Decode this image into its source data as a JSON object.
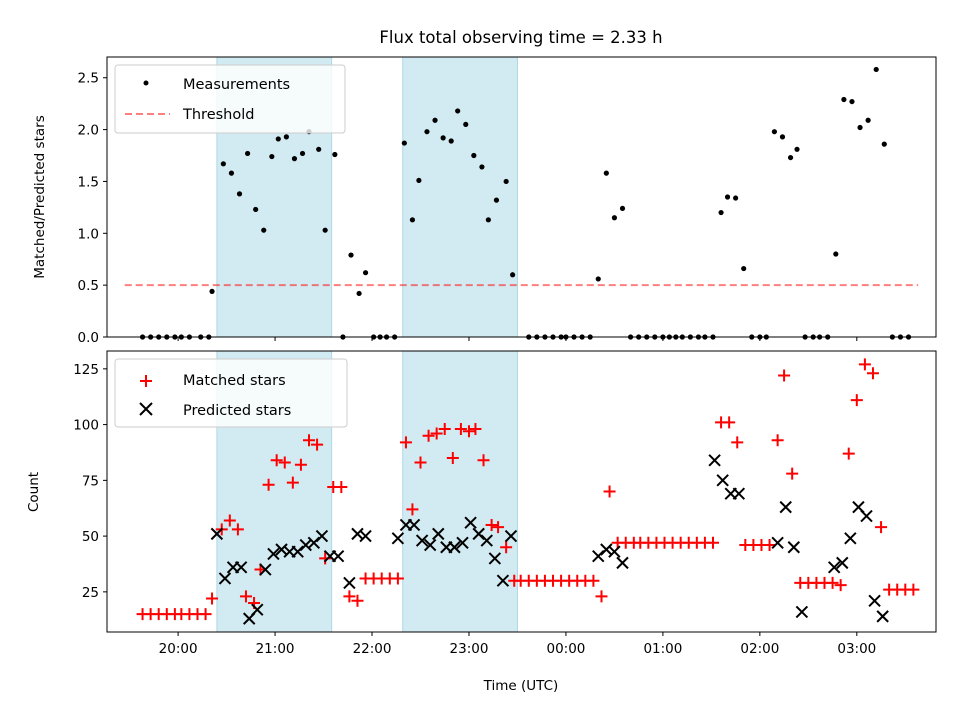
{
  "title": "Flux total observing time = 2.33 h",
  "colors": {
    "shade": "#add8e6",
    "measurement": "#000000",
    "threshold": "#ff0000",
    "matched": "#ff0000",
    "predicted": "#000000"
  },
  "chart_data": [
    {
      "type": "scatter",
      "panel": "top",
      "ylabel": "Matched/Predicted stars",
      "ylim": [
        0,
        2.7
      ],
      "xlim": [
        "19:16",
        "03:49"
      ],
      "yticks": [
        "0.0",
        "0.5",
        "1.0",
        "1.5",
        "2.0",
        "2.5"
      ],
      "grid": false,
      "legend_position": "upper-left",
      "legend": [
        "Measurements",
        "Threshold"
      ],
      "threshold": {
        "name": "Threshold",
        "y": 0.5,
        "x_start": "19:27",
        "x_end": "03:38"
      },
      "shaded_intervals": [
        [
          "20:24",
          "21:35"
        ],
        [
          "22:19",
          "23:30"
        ]
      ],
      "series": [
        {
          "name": "Measurements",
          "style": "dot",
          "points": [
            [
              "19:38",
              0
            ],
            [
              "19:43",
              0
            ],
            [
              "19:48",
              0
            ],
            [
              "19:53",
              0
            ],
            [
              "19:58",
              0
            ],
            [
              "20:02",
              0
            ],
            [
              "20:07",
              0
            ],
            [
              "20:14",
              0
            ],
            [
              "20:19",
              0
            ],
            [
              "20:21",
              0.44
            ],
            [
              "20:28",
              1.67
            ],
            [
              "20:33",
              1.58
            ],
            [
              "20:38",
              1.38
            ],
            [
              "20:43",
              1.77
            ],
            [
              "20:48",
              1.23
            ],
            [
              "20:53",
              1.03
            ],
            [
              "20:58",
              1.74
            ],
            [
              "21:02",
              1.91
            ],
            [
              "21:07",
              1.93
            ],
            [
              "21:12",
              1.72
            ],
            [
              "21:17",
              1.77
            ],
            [
              "21:21",
              1.98
            ],
            [
              "21:27",
              1.81
            ],
            [
              "21:31",
              1.03
            ],
            [
              "21:37",
              1.76
            ],
            [
              "21:42",
              0
            ],
            [
              "21:47",
              0.79
            ],
            [
              "21:52",
              0.42
            ],
            [
              "21:56",
              0.62
            ],
            [
              "22:01",
              0
            ],
            [
              "22:05",
              0
            ],
            [
              "22:09",
              0
            ],
            [
              "22:14",
              0
            ],
            [
              "22:20",
              1.87
            ],
            [
              "22:25",
              1.13
            ],
            [
              "22:29",
              1.51
            ],
            [
              "22:34",
              1.98
            ],
            [
              "22:39",
              2.09
            ],
            [
              "22:44",
              1.92
            ],
            [
              "22:49",
              1.89
            ],
            [
              "22:53",
              2.18
            ],
            [
              "22:58",
              2.05
            ],
            [
              "23:03",
              1.75
            ],
            [
              "23:08",
              1.64
            ],
            [
              "23:12",
              1.13
            ],
            [
              "23:17",
              1.32
            ],
            [
              "23:23",
              1.5
            ],
            [
              "23:27",
              0.6
            ],
            [
              "23:37",
              0
            ],
            [
              "23:42",
              0
            ],
            [
              "23:47",
              0
            ],
            [
              "23:52",
              0
            ],
            [
              "23:57",
              0
            ],
            [
              "00:00",
              0
            ],
            [
              "00:05",
              0
            ],
            [
              "00:10",
              0
            ],
            [
              "00:15",
              0
            ],
            [
              "00:20",
              0.56
            ],
            [
              "00:25",
              1.58
            ],
            [
              "00:30",
              1.15
            ],
            [
              "00:35",
              1.24
            ],
            [
              "00:40",
              0
            ],
            [
              "00:45",
              0
            ],
            [
              "00:50",
              0
            ],
            [
              "00:55",
              0
            ],
            [
              "01:00",
              0
            ],
            [
              "01:04",
              0
            ],
            [
              "01:08",
              0
            ],
            [
              "01:12",
              0
            ],
            [
              "01:17",
              0
            ],
            [
              "01:22",
              0
            ],
            [
              "01:26",
              0
            ],
            [
              "01:31",
              0
            ],
            [
              "01:36",
              1.2
            ],
            [
              "01:40",
              1.35
            ],
            [
              "01:45",
              1.34
            ],
            [
              "01:50",
              0.66
            ],
            [
              "01:55",
              0
            ],
            [
              "02:00",
              0
            ],
            [
              "02:04",
              0
            ],
            [
              "02:09",
              1.98
            ],
            [
              "02:14",
              1.93
            ],
            [
              "02:19",
              1.73
            ],
            [
              "02:23",
              1.81
            ],
            [
              "02:28",
              0
            ],
            [
              "02:33",
              0
            ],
            [
              "02:37",
              0
            ],
            [
              "02:42",
              0
            ],
            [
              "02:47",
              0.8
            ],
            [
              "02:52",
              2.29
            ],
            [
              "02:57",
              2.27
            ],
            [
              "03:02",
              2.02
            ],
            [
              "03:07",
              2.09
            ],
            [
              "03:12",
              2.58
            ],
            [
              "03:17",
              1.86
            ],
            [
              "03:22",
              0
            ],
            [
              "03:27",
              0
            ],
            [
              "03:32",
              0
            ]
          ]
        }
      ]
    },
    {
      "type": "scatter",
      "panel": "bottom",
      "xlabel": "Time (UTC)",
      "ylabel": "Count",
      "ylim": [
        7,
        133
      ],
      "xlim": [
        "19:16",
        "03:49"
      ],
      "yticks": [
        "25",
        "50",
        "75",
        "100",
        "125"
      ],
      "xticks": [
        "20:00",
        "21:00",
        "22:00",
        "23:00",
        "00:00",
        "01:00",
        "02:00",
        "03:00"
      ],
      "grid": false,
      "legend_position": "upper-left",
      "legend": [
        "Matched stars",
        "Predicted stars"
      ],
      "shaded_intervals": [
        [
          "20:24",
          "21:35"
        ],
        [
          "22:19",
          "23:30"
        ]
      ],
      "series": [
        {
          "name": "Matched stars",
          "style": "plus",
          "points": [
            [
              "19:38",
              15
            ],
            [
              "19:43",
              15
            ],
            [
              "19:48",
              15
            ],
            [
              "19:53",
              15
            ],
            [
              "19:58",
              15
            ],
            [
              "20:02",
              15
            ],
            [
              "20:07",
              15
            ],
            [
              "20:12",
              15
            ],
            [
              "20:17",
              15
            ],
            [
              "20:21",
              22
            ],
            [
              "20:27",
              53
            ],
            [
              "20:32",
              57
            ],
            [
              "20:37",
              53
            ],
            [
              "20:42",
              23
            ],
            [
              "20:47",
              20
            ],
            [
              "20:51",
              35
            ],
            [
              "20:56",
              73
            ],
            [
              "21:01",
              84
            ],
            [
              "21:06",
              83
            ],
            [
              "21:11",
              74
            ],
            [
              "21:16",
              82
            ],
            [
              "21:21",
              93
            ],
            [
              "21:26",
              91
            ],
            [
              "21:31",
              40
            ],
            [
              "21:36",
              72
            ],
            [
              "21:41",
              72
            ],
            [
              "21:46",
              23
            ],
            [
              "21:51",
              21
            ],
            [
              "21:56",
              31
            ],
            [
              "22:01",
              31
            ],
            [
              "22:06",
              31
            ],
            [
              "22:11",
              31
            ],
            [
              "22:16",
              31
            ],
            [
              "22:21",
              92
            ],
            [
              "22:25",
              62
            ],
            [
              "22:30",
              83
            ],
            [
              "22:35",
              95
            ],
            [
              "22:40",
              96
            ],
            [
              "22:45",
              98
            ],
            [
              "22:50",
              85
            ],
            [
              "22:55",
              98
            ],
            [
              "23:00",
              97
            ],
            [
              "23:04",
              98
            ],
            [
              "23:09",
              84
            ],
            [
              "23:14",
              55
            ],
            [
              "23:18",
              54
            ],
            [
              "23:23",
              45
            ],
            [
              "23:28",
              30
            ],
            [
              "23:32",
              30
            ],
            [
              "23:37",
              30
            ],
            [
              "23:42",
              30
            ],
            [
              "23:47",
              30
            ],
            [
              "23:52",
              30
            ],
            [
              "23:57",
              30
            ],
            [
              "00:02",
              30
            ],
            [
              "00:07",
              30
            ],
            [
              "00:12",
              30
            ],
            [
              "00:17",
              30
            ],
            [
              "00:22",
              23
            ],
            [
              "00:27",
              70
            ],
            [
              "00:32",
              47
            ],
            [
              "00:37",
              47
            ],
            [
              "00:42",
              47
            ],
            [
              "00:46",
              47
            ],
            [
              "00:51",
              47
            ],
            [
              "00:56",
              47
            ],
            [
              "01:01",
              47
            ],
            [
              "01:06",
              47
            ],
            [
              "01:11",
              47
            ],
            [
              "01:16",
              47
            ],
            [
              "01:21",
              47
            ],
            [
              "01:26",
              47
            ],
            [
              "01:31",
              47
            ],
            [
              "01:36",
              101
            ],
            [
              "01:41",
              101
            ],
            [
              "01:46",
              92
            ],
            [
              "01:51",
              46
            ],
            [
              "01:56",
              46
            ],
            [
              "02:01",
              46
            ],
            [
              "02:06",
              46
            ],
            [
              "02:11",
              93
            ],
            [
              "02:15",
              122
            ],
            [
              "02:20",
              78
            ],
            [
              "02:25",
              29
            ],
            [
              "02:30",
              29
            ],
            [
              "02:35",
              29
            ],
            [
              "02:40",
              29
            ],
            [
              "02:45",
              29
            ],
            [
              "02:50",
              28
            ],
            [
              "02:55",
              87
            ],
            [
              "03:00",
              111
            ],
            [
              "03:05",
              127
            ],
            [
              "03:10",
              123
            ],
            [
              "03:15",
              54
            ],
            [
              "03:20",
              26
            ],
            [
              "03:25",
              26
            ],
            [
              "03:30",
              26
            ],
            [
              "03:35",
              26
            ]
          ]
        },
        {
          "name": "Predicted stars",
          "style": "x",
          "points": [
            [
              "20:24",
              51
            ],
            [
              "20:29",
              31
            ],
            [
              "20:34",
              36
            ],
            [
              "20:39",
              36
            ],
            [
              "20:44",
              13
            ],
            [
              "20:49",
              17
            ],
            [
              "20:54",
              35
            ],
            [
              "20:59",
              42
            ],
            [
              "21:04",
              44
            ],
            [
              "21:09",
              43
            ],
            [
              "21:14",
              43
            ],
            [
              "21:19",
              46
            ],
            [
              "21:24",
              47
            ],
            [
              "21:29",
              50
            ],
            [
              "21:34",
              41
            ],
            [
              "21:39",
              41
            ],
            [
              "21:46",
              29
            ],
            [
              "21:51",
              51
            ],
            [
              "21:56",
              50
            ],
            [
              "22:16",
              49
            ],
            [
              "22:21",
              55
            ],
            [
              "22:26",
              55
            ],
            [
              "22:31",
              48
            ],
            [
              "22:36",
              46
            ],
            [
              "22:41",
              51
            ],
            [
              "22:46",
              45
            ],
            [
              "22:51",
              45
            ],
            [
              "22:56",
              47
            ],
            [
              "23:01",
              56
            ],
            [
              "23:06",
              51
            ],
            [
              "23:11",
              48
            ],
            [
              "23:16",
              40
            ],
            [
              "23:21",
              30
            ],
            [
              "23:26",
              50
            ],
            [
              "00:20",
              41
            ],
            [
              "00:25",
              44
            ],
            [
              "00:30",
              43
            ],
            [
              "00:35",
              38
            ],
            [
              "01:32",
              84
            ],
            [
              "01:37",
              75
            ],
            [
              "01:42",
              69
            ],
            [
              "01:47",
              69
            ],
            [
              "02:11",
              47
            ],
            [
              "02:16",
              63
            ],
            [
              "02:21",
              45
            ],
            [
              "02:26",
              16
            ],
            [
              "02:46",
              36
            ],
            [
              "02:51",
              38
            ],
            [
              "02:56",
              49
            ],
            [
              "03:01",
              63
            ],
            [
              "03:06",
              59
            ],
            [
              "03:11",
              21
            ],
            [
              "03:16",
              14
            ]
          ]
        }
      ]
    }
  ]
}
